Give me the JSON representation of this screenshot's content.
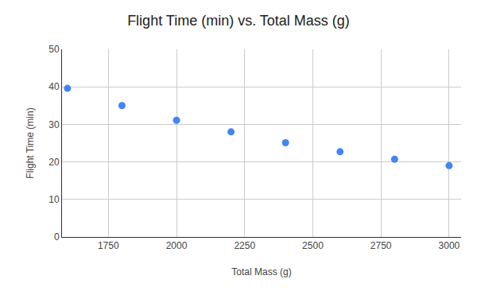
{
  "chart_data": {
    "type": "scatter",
    "title": "Flight Time (min) vs. Total Mass (g)",
    "x_label": "Total Mass (g)",
    "y_label": "Flight Time (min)",
    "x": [
      1600,
      1800,
      2000,
      2200,
      2400,
      2600,
      2800,
      3000
    ],
    "values": [
      39.6,
      35,
      31.1,
      28,
      25.1,
      22.7,
      20.7,
      19
    ],
    "color": "#4285f4",
    "marker": "circle",
    "xlim": [
      1580,
      3044
    ],
    "xticks": [
      1750,
      2000,
      2250,
      2500,
      2750,
      3000
    ],
    "ylim": [
      0,
      50
    ],
    "yticks": [
      0,
      10,
      20,
      30,
      40,
      50
    ],
    "grid": true
  }
}
